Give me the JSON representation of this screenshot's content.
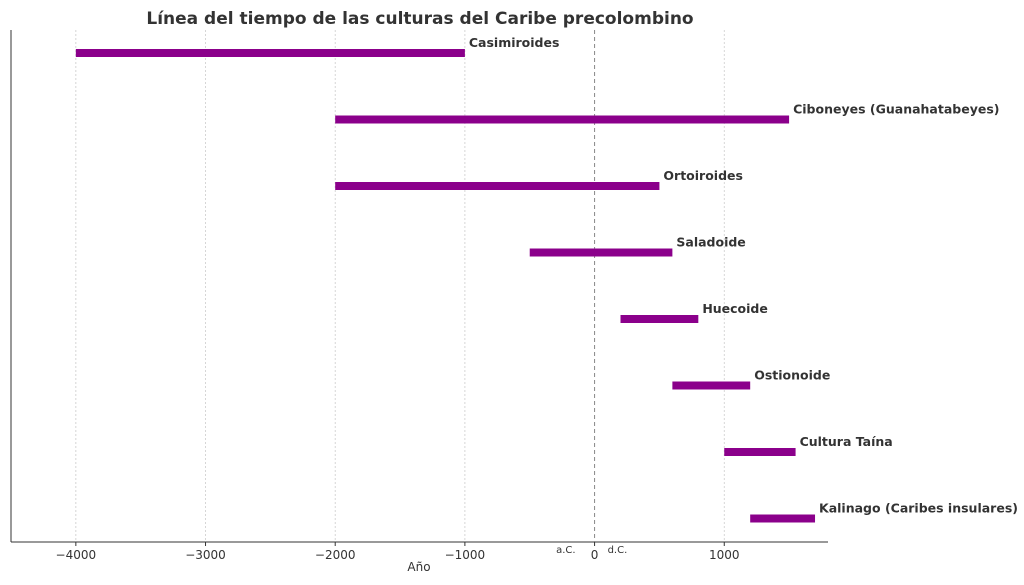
{
  "chart_data": {
    "type": "timeline",
    "title": "Línea del tiempo de las culturas del Caribe precolombino",
    "xlabel": "Año",
    "xlim": [
      -4500,
      1800
    ],
    "x_ticks": [
      -4000,
      -3000,
      -2000,
      -1000,
      0,
      1000
    ],
    "x_tick_labels": [
      "−4000",
      "−3000",
      "−2000",
      "−1000",
      "0",
      "1000"
    ],
    "grid": "vertical-dotted",
    "reference_line": {
      "x": 0,
      "left_label": "a.C.",
      "right_label": "d.C."
    },
    "bar_color": "#8B008B",
    "periods": [
      {
        "name": "Casimiroides",
        "start": -4000,
        "end": -1000
      },
      {
        "name": "Ciboneyes (Guanahatabeyes)",
        "start": -2000,
        "end": 1500
      },
      {
        "name": "Ortoiroides",
        "start": -2000,
        "end": 500
      },
      {
        "name": "Saladoide",
        "start": -500,
        "end": 600
      },
      {
        "name": "Huecoide",
        "start": 200,
        "end": 800
      },
      {
        "name": "Ostionoide",
        "start": 600,
        "end": 1200
      },
      {
        "name": "Cultura Taína",
        "start": 1000,
        "end": 1550
      },
      {
        "name": "Kalinago (Caribes insulares)",
        "start": 1200,
        "end": 1700
      }
    ]
  }
}
